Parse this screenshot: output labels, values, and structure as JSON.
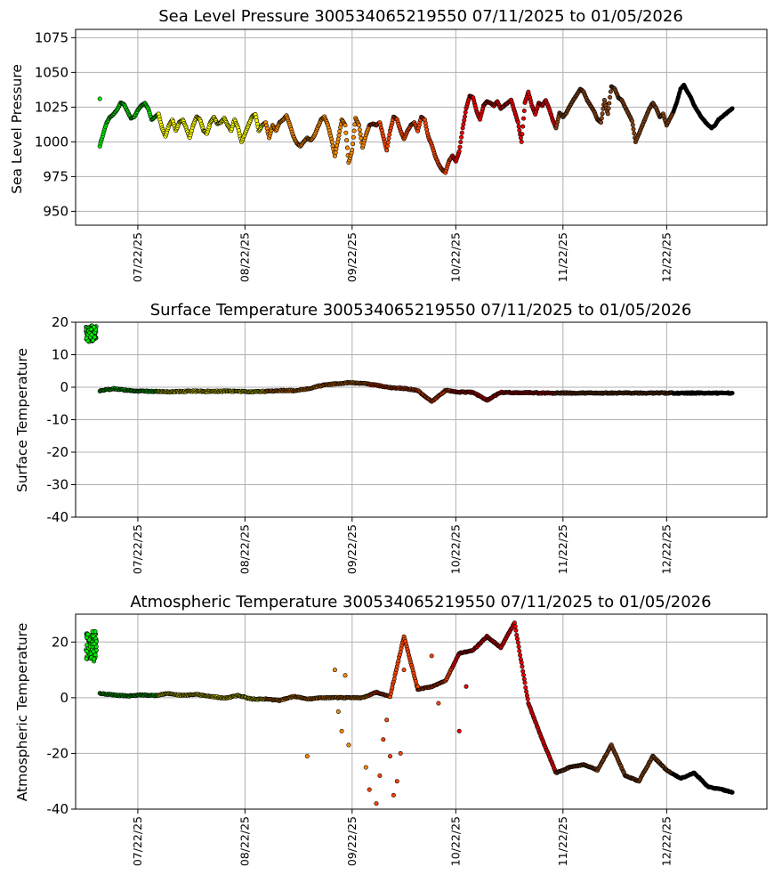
{
  "chart_data": [
    {
      "type": "scatter",
      "title": "Sea Level Pressure 300534065219550  07/11/2025 to 01/05/2026",
      "ylabel": "Sea Level Pressure",
      "xlabel": "",
      "yticks": [
        "950",
        "975",
        "1000",
        "1025",
        "1050",
        "1075"
      ],
      "ylim": [
        940,
        1081
      ],
      "xticks": [
        "07/22/25",
        "08/22/25",
        "09/22/25",
        "10/22/25",
        "11/22/25",
        "12/22/25"
      ],
      "xlim_days": [
        -7,
        193
      ],
      "grid": true,
      "x_days": [
        0,
        1,
        2,
        3,
        4,
        5,
        6,
        7,
        8,
        9,
        10,
        11,
        12,
        13,
        14,
        15,
        16,
        17,
        18,
        19,
        20,
        21,
        22,
        23,
        24,
        25,
        26,
        27,
        28,
        29,
        30,
        31,
        32,
        33,
        34,
        35,
        36,
        37,
        38,
        39,
        40,
        41,
        42,
        43,
        44,
        45,
        46,
        47,
        48,
        49,
        50,
        51,
        52,
        53,
        54,
        55,
        56,
        57,
        58,
        59,
        60,
        61,
        62,
        63,
        64,
        65,
        66,
        67,
        68,
        69,
        70,
        71,
        72,
        73,
        74,
        75,
        76,
        77,
        78,
        79,
        80,
        81,
        82,
        83,
        84,
        85,
        86,
        87,
        88,
        89,
        90,
        91,
        92,
        93,
        94,
        95,
        96,
        97,
        98,
        99,
        100,
        101,
        102,
        103,
        104,
        105,
        106,
        107,
        108,
        109,
        110,
        111,
        112,
        113,
        114,
        115,
        116,
        117,
        118,
        119,
        120,
        121,
        122,
        123,
        124,
        125,
        126,
        127,
        128,
        129,
        130,
        131,
        132,
        133,
        134,
        135,
        136,
        137,
        138,
        139,
        140,
        141,
        142,
        143,
        144,
        145,
        146,
        147,
        148,
        149,
        150,
        151,
        152,
        153,
        154,
        155,
        156,
        157,
        158,
        159,
        160,
        161,
        162,
        163,
        164,
        165,
        166,
        167,
        168,
        169,
        170,
        171,
        172,
        173,
        174,
        175,
        176,
        177,
        178,
        179,
        180,
        181,
        182,
        183
      ],
      "y": [
        997,
        1006,
        1014,
        1018,
        1020,
        1023,
        1028,
        1027,
        1022,
        1017,
        1018,
        1023,
        1026,
        1028,
        1024,
        1016,
        1018,
        1020,
        1010,
        1004,
        1012,
        1016,
        1008,
        1014,
        1016,
        1010,
        1003,
        1012,
        1018,
        1016,
        1008,
        1006,
        1014,
        1018,
        1013,
        1014,
        1017,
        1012,
        1008,
        1016,
        1010,
        1000,
        1006,
        1012,
        1018,
        1020,
        1008,
        1012,
        1014,
        1003,
        1012,
        1008,
        1014,
        1016,
        1019,
        1012,
        1004,
        999,
        997,
        1000,
        1003,
        1001,
        1004,
        1010,
        1016,
        1018,
        1012,
        1002,
        990,
        1002,
        1016,
        1012,
        985,
        994,
        1017,
        1012,
        996,
        1005,
        1012,
        1013,
        1012,
        1014,
        1004,
        994,
        1008,
        1018,
        1016,
        1008,
        1002,
        1008,
        1012,
        1014,
        1008,
        1018,
        1016,
        1004,
        998,
        990,
        984,
        980,
        978,
        986,
        990,
        986,
        993,
        1010,
        1024,
        1033,
        1032,
        1022,
        1016,
        1026,
        1029,
        1028,
        1026,
        1029,
        1024,
        1026,
        1028,
        1030,
        1022,
        1014,
        1000,
        1028,
        1036,
        1026,
        1020,
        1028,
        1026,
        1030,
        1024,
        1016,
        1010,
        1021,
        1018,
        1021,
        1026,
        1030,
        1034,
        1038,
        1036,
        1030,
        1026,
        1022,
        1016,
        1014,
        1030,
        1020,
        1040,
        1038,
        1032,
        1030,
        1025,
        1020,
        1015,
        1000,
        1006,
        1012,
        1018,
        1024,
        1028,
        1024,
        1018,
        1020,
        1012,
        1017,
        1022,
        1029,
        1038,
        1041,
        1036,
        1032,
        1026,
        1022,
        1018,
        1015,
        1012,
        1010,
        1012,
        1016,
        1018,
        1020,
        1022,
        1024
      ],
      "extra_points": [
        {
          "x_day": 0,
          "y": 1031
        }
      ]
    },
    {
      "type": "scatter",
      "title": "Surface Temperature 300534065219550  07/11/2025 to 01/05/2026",
      "ylabel": "Surface Temperature",
      "xlabel": "",
      "yticks": [
        "-40",
        "-30",
        "-20",
        "-10",
        "0",
        "10",
        "20"
      ],
      "ylim": [
        -40,
        20
      ],
      "xticks": [
        "07/22/25",
        "08/22/25",
        "09/22/25",
        "10/22/25",
        "11/22/25",
        "12/22/25"
      ],
      "xlim_days": [
        -7,
        193
      ],
      "grid": true,
      "x_days": [
        0,
        4,
        8,
        12,
        16,
        20,
        24,
        28,
        32,
        36,
        40,
        44,
        48,
        52,
        56,
        60,
        64,
        68,
        72,
        76,
        80,
        84,
        88,
        92,
        96,
        100,
        104,
        108,
        112,
        116,
        120,
        124,
        128,
        132,
        136,
        140,
        144,
        148,
        152,
        156,
        160,
        164,
        168,
        172,
        176,
        180,
        183
      ],
      "y": [
        -1.2,
        -0.4,
        -1.0,
        -1.2,
        -1.3,
        -1.4,
        -1.3,
        -1.2,
        -1.3,
        -1.2,
        -1.3,
        -1.4,
        -1.3,
        -1.0,
        -1.1,
        -0.5,
        0.5,
        1.0,
        1.4,
        1.2,
        0.6,
        -0.1,
        -0.4,
        -1.0,
        -4.5,
        -1.0,
        -1.5,
        -1.6,
        -4.0,
        -1.6,
        -1.7,
        -1.7,
        -1.8,
        -1.8,
        -1.8,
        -1.8,
        -1.8,
        -1.8,
        -1.8,
        -1.8,
        -1.8,
        -1.8,
        -1.8,
        -1.8,
        -1.8,
        -1.8,
        -1.8
      ],
      "early_cluster": {
        "x_day_range": [
          -4,
          -1
        ],
        "y_range": [
          14,
          19
        ]
      }
    },
    {
      "type": "scatter",
      "title": "Atmospheric Temperature 300534065219550  07/11/2025 to 01/05/2026",
      "ylabel": "Atmospheric Temperature",
      "xlabel": "",
      "yticks": [
        "-40",
        "-20",
        "0",
        "20"
      ],
      "ylim": [
        -40,
        30
      ],
      "xticks": [
        "07/22/25",
        "08/22/25",
        "09/22/25",
        "10/22/25",
        "11/22/25",
        "12/22/25"
      ],
      "xlim_days": [
        -7,
        193
      ],
      "grid": true,
      "x_days": [
        0,
        4,
        8,
        12,
        16,
        20,
        24,
        28,
        32,
        36,
        40,
        44,
        48,
        52,
        56,
        60,
        64,
        68,
        72,
        76,
        80,
        84,
        88,
        92,
        96,
        100,
        104,
        108,
        112,
        116,
        120,
        124,
        128,
        132,
        136,
        140,
        144,
        148,
        152,
        156,
        160,
        164,
        168,
        172,
        176,
        180,
        183
      ],
      "y": [
        1.5,
        1.0,
        0.6,
        1.0,
        0.8,
        1.5,
        0.8,
        1.2,
        0.5,
        -0.2,
        0.8,
        -0.5,
        -0.5,
        -1.0,
        0.5,
        -0.5,
        0.0,
        0.0,
        0.0,
        0.0,
        2.0,
        0.5,
        22.0,
        3.0,
        4.0,
        6.0,
        16.0,
        17.0,
        22.0,
        18.0,
        27.0,
        -2.0,
        -15.0,
        -27.0,
        -25.0,
        -24.0,
        -26.0,
        -17.0,
        -28.0,
        -30.0,
        -21.0,
        -26.0,
        -29.0,
        -27.0,
        -32.0,
        -33.0,
        -34.0
      ],
      "early_cluster": {
        "x_day_range": [
          -4,
          -1
        ],
        "y_range": [
          13,
          24
        ]
      },
      "outliers": [
        {
          "x_day": 68,
          "y": 10
        },
        {
          "x_day": 69,
          "y": -5
        },
        {
          "x_day": 70,
          "y": -12
        },
        {
          "x_day": 71,
          "y": 8
        },
        {
          "x_day": 72,
          "y": -17
        },
        {
          "x_day": 77,
          "y": -25
        },
        {
          "x_day": 78,
          "y": -33
        },
        {
          "x_day": 80,
          "y": -38
        },
        {
          "x_day": 81,
          "y": -28
        },
        {
          "x_day": 82,
          "y": -15
        },
        {
          "x_day": 83,
          "y": -8
        },
        {
          "x_day": 84,
          "y": -21
        },
        {
          "x_day": 85,
          "y": -35
        },
        {
          "x_day": 86,
          "y": -30
        },
        {
          "x_day": 87,
          "y": -20
        },
        {
          "x_day": 88,
          "y": 10
        },
        {
          "x_day": 60,
          "y": -21
        },
        {
          "x_day": 92,
          "y": 4
        },
        {
          "x_day": 96,
          "y": 15
        },
        {
          "x_day": 98,
          "y": -2
        },
        {
          "x_day": 104,
          "y": -12
        },
        {
          "x_day": 106,
          "y": 4
        }
      ]
    }
  ],
  "colors": {
    "period_segments": [
      {
        "from_day": -5,
        "to_day": 17,
        "color": "#00ee00"
      },
      {
        "from_day": 17,
        "to_day": 48,
        "color": "#ffff00"
      },
      {
        "from_day": 48,
        "to_day": 78,
        "color": "#ff8c00"
      },
      {
        "from_day": 78,
        "to_day": 102,
        "color": "#ff4500"
      },
      {
        "from_day": 102,
        "to_day": 132,
        "color": "#ee0000"
      },
      {
        "from_day": 132,
        "to_day": 166,
        "color": "#8b4513"
      },
      {
        "from_day": 166,
        "to_day": 200,
        "color": "#000000"
      }
    ],
    "grid": "#b0b0b0",
    "marker_edge": "#000000"
  }
}
